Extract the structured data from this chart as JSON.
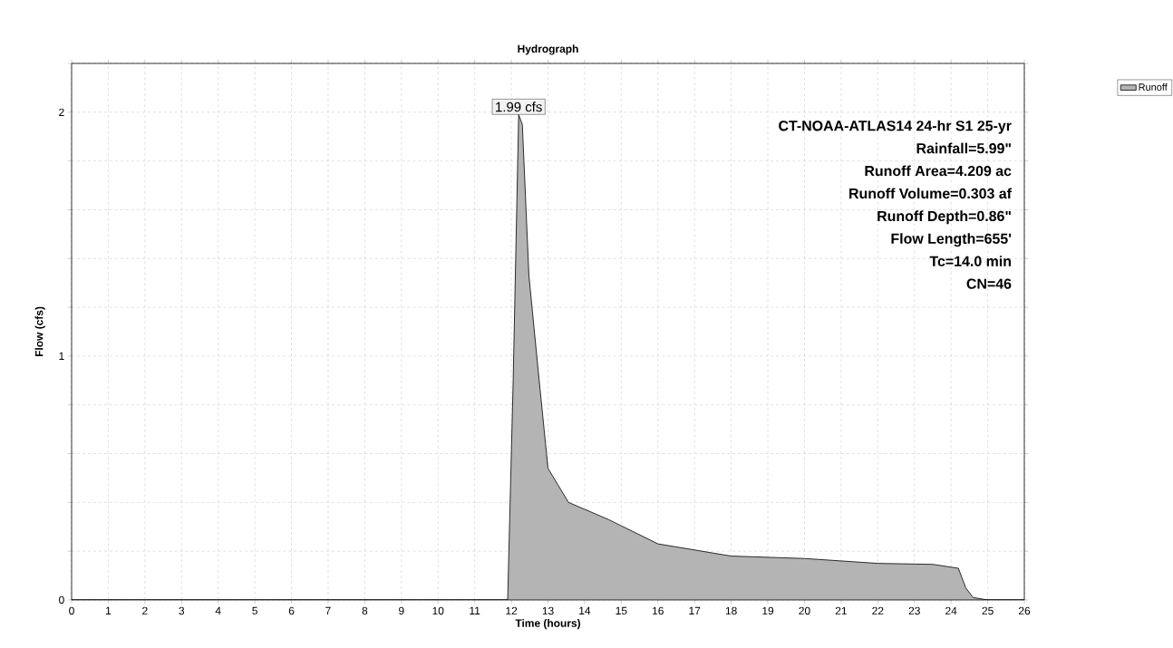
{
  "chart_data": {
    "type": "area",
    "title": "Hydrograph",
    "xlabel": "Time  (hours)",
    "ylabel": "Flow  (cfs)",
    "x": [
      0,
      11.9,
      12.05,
      12.2,
      12.3,
      12.48,
      12.72,
      13.0,
      13.56,
      14.65,
      16,
      18,
      20,
      22,
      23.5,
      24.2,
      24.4,
      24.6,
      25,
      26
    ],
    "series": [
      {
        "name": "Runoff",
        "color": "#b4b4b4",
        "values": [
          0,
          0,
          0.9,
          1.99,
          1.95,
          1.33,
          0.96,
          0.54,
          0.4,
          0.33,
          0.23,
          0.18,
          0.17,
          0.15,
          0.146,
          0.13,
          0.05,
          0.01,
          0,
          0
        ]
      }
    ],
    "xlim": [
      0,
      26
    ],
    "xticks": [
      0,
      1,
      2,
      3,
      4,
      5,
      6,
      7,
      8,
      9,
      10,
      11,
      12,
      13,
      14,
      15,
      16,
      17,
      18,
      19,
      20,
      21,
      22,
      23,
      24,
      25,
      26
    ],
    "ylim": [
      0,
      2.2
    ],
    "yticks": [
      0,
      {
        "value": 0.2,
        "label": null
      },
      {
        "value": 0.4,
        "label": null
      },
      {
        "value": 0.6,
        "label": null
      },
      {
        "value": 0.8,
        "label": null
      },
      1,
      {
        "value": 1.2,
        "label": null
      },
      {
        "value": 1.4,
        "label": null
      },
      {
        "value": 1.6,
        "label": null
      },
      {
        "value": 1.8,
        "label": null
      },
      2,
      {
        "value": 2.2,
        "label": null
      }
    ],
    "grid": true,
    "legend": "top right",
    "annotations": [
      {
        "text": "1.99 cfs",
        "x": 12.2,
        "y": 1.99
      },
      "CT-NOAA-ATLAS14 24-hr S1 25-yr",
      "Rainfall=5.99\"",
      "Runoff Area=4.209 ac",
      "Runoff Volume=0.303 af",
      "Runoff Depth=0.86\"",
      "Flow Length=655'",
      "Tc=14.0 min",
      "CN=46"
    ]
  }
}
